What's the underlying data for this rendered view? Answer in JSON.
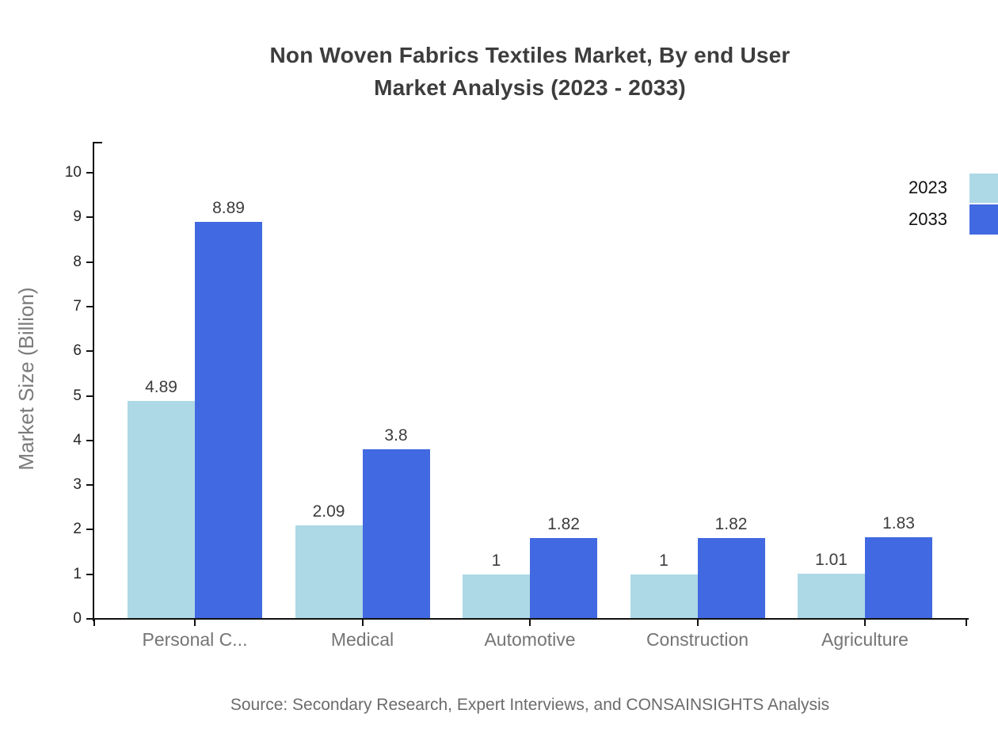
{
  "title": {
    "line1": "Non Woven Fabrics Textiles Market, By end User",
    "line2": "Market Analysis (2023 - 2033)"
  },
  "source": "Source: Secondary Research, Expert Interviews, and CONSAINSIGHTS Analysis",
  "chart_data": {
    "type": "bar",
    "title": "Non Woven Fabrics Textiles Market, By end User Market Analysis (2023 - 2033)",
    "categories": [
      "Personal C...",
      "Medical",
      "Automotive",
      "Construction",
      "Agriculture"
    ],
    "series": [
      {
        "name": "2023",
        "color": "#ADD8E6",
        "values": [
          4.89,
          2.09,
          1,
          1,
          1.01
        ],
        "labels": [
          "4.89",
          "2.09",
          "1",
          "1",
          "1.01"
        ]
      },
      {
        "name": "2033",
        "color": "#4169E1",
        "values": [
          8.89,
          3.8,
          1.82,
          1.82,
          1.83
        ],
        "labels": [
          "8.89",
          "3.8",
          "1.82",
          "1.82",
          "1.83"
        ]
      }
    ],
    "xlabel": "",
    "ylabel": "Market Size (Billion)",
    "ylim": [
      0,
      10
    ],
    "yticks": [
      0,
      1,
      2,
      3,
      4,
      5,
      6,
      7,
      8,
      9,
      10
    ],
    "grid": false,
    "legend_position": "top-right"
  }
}
